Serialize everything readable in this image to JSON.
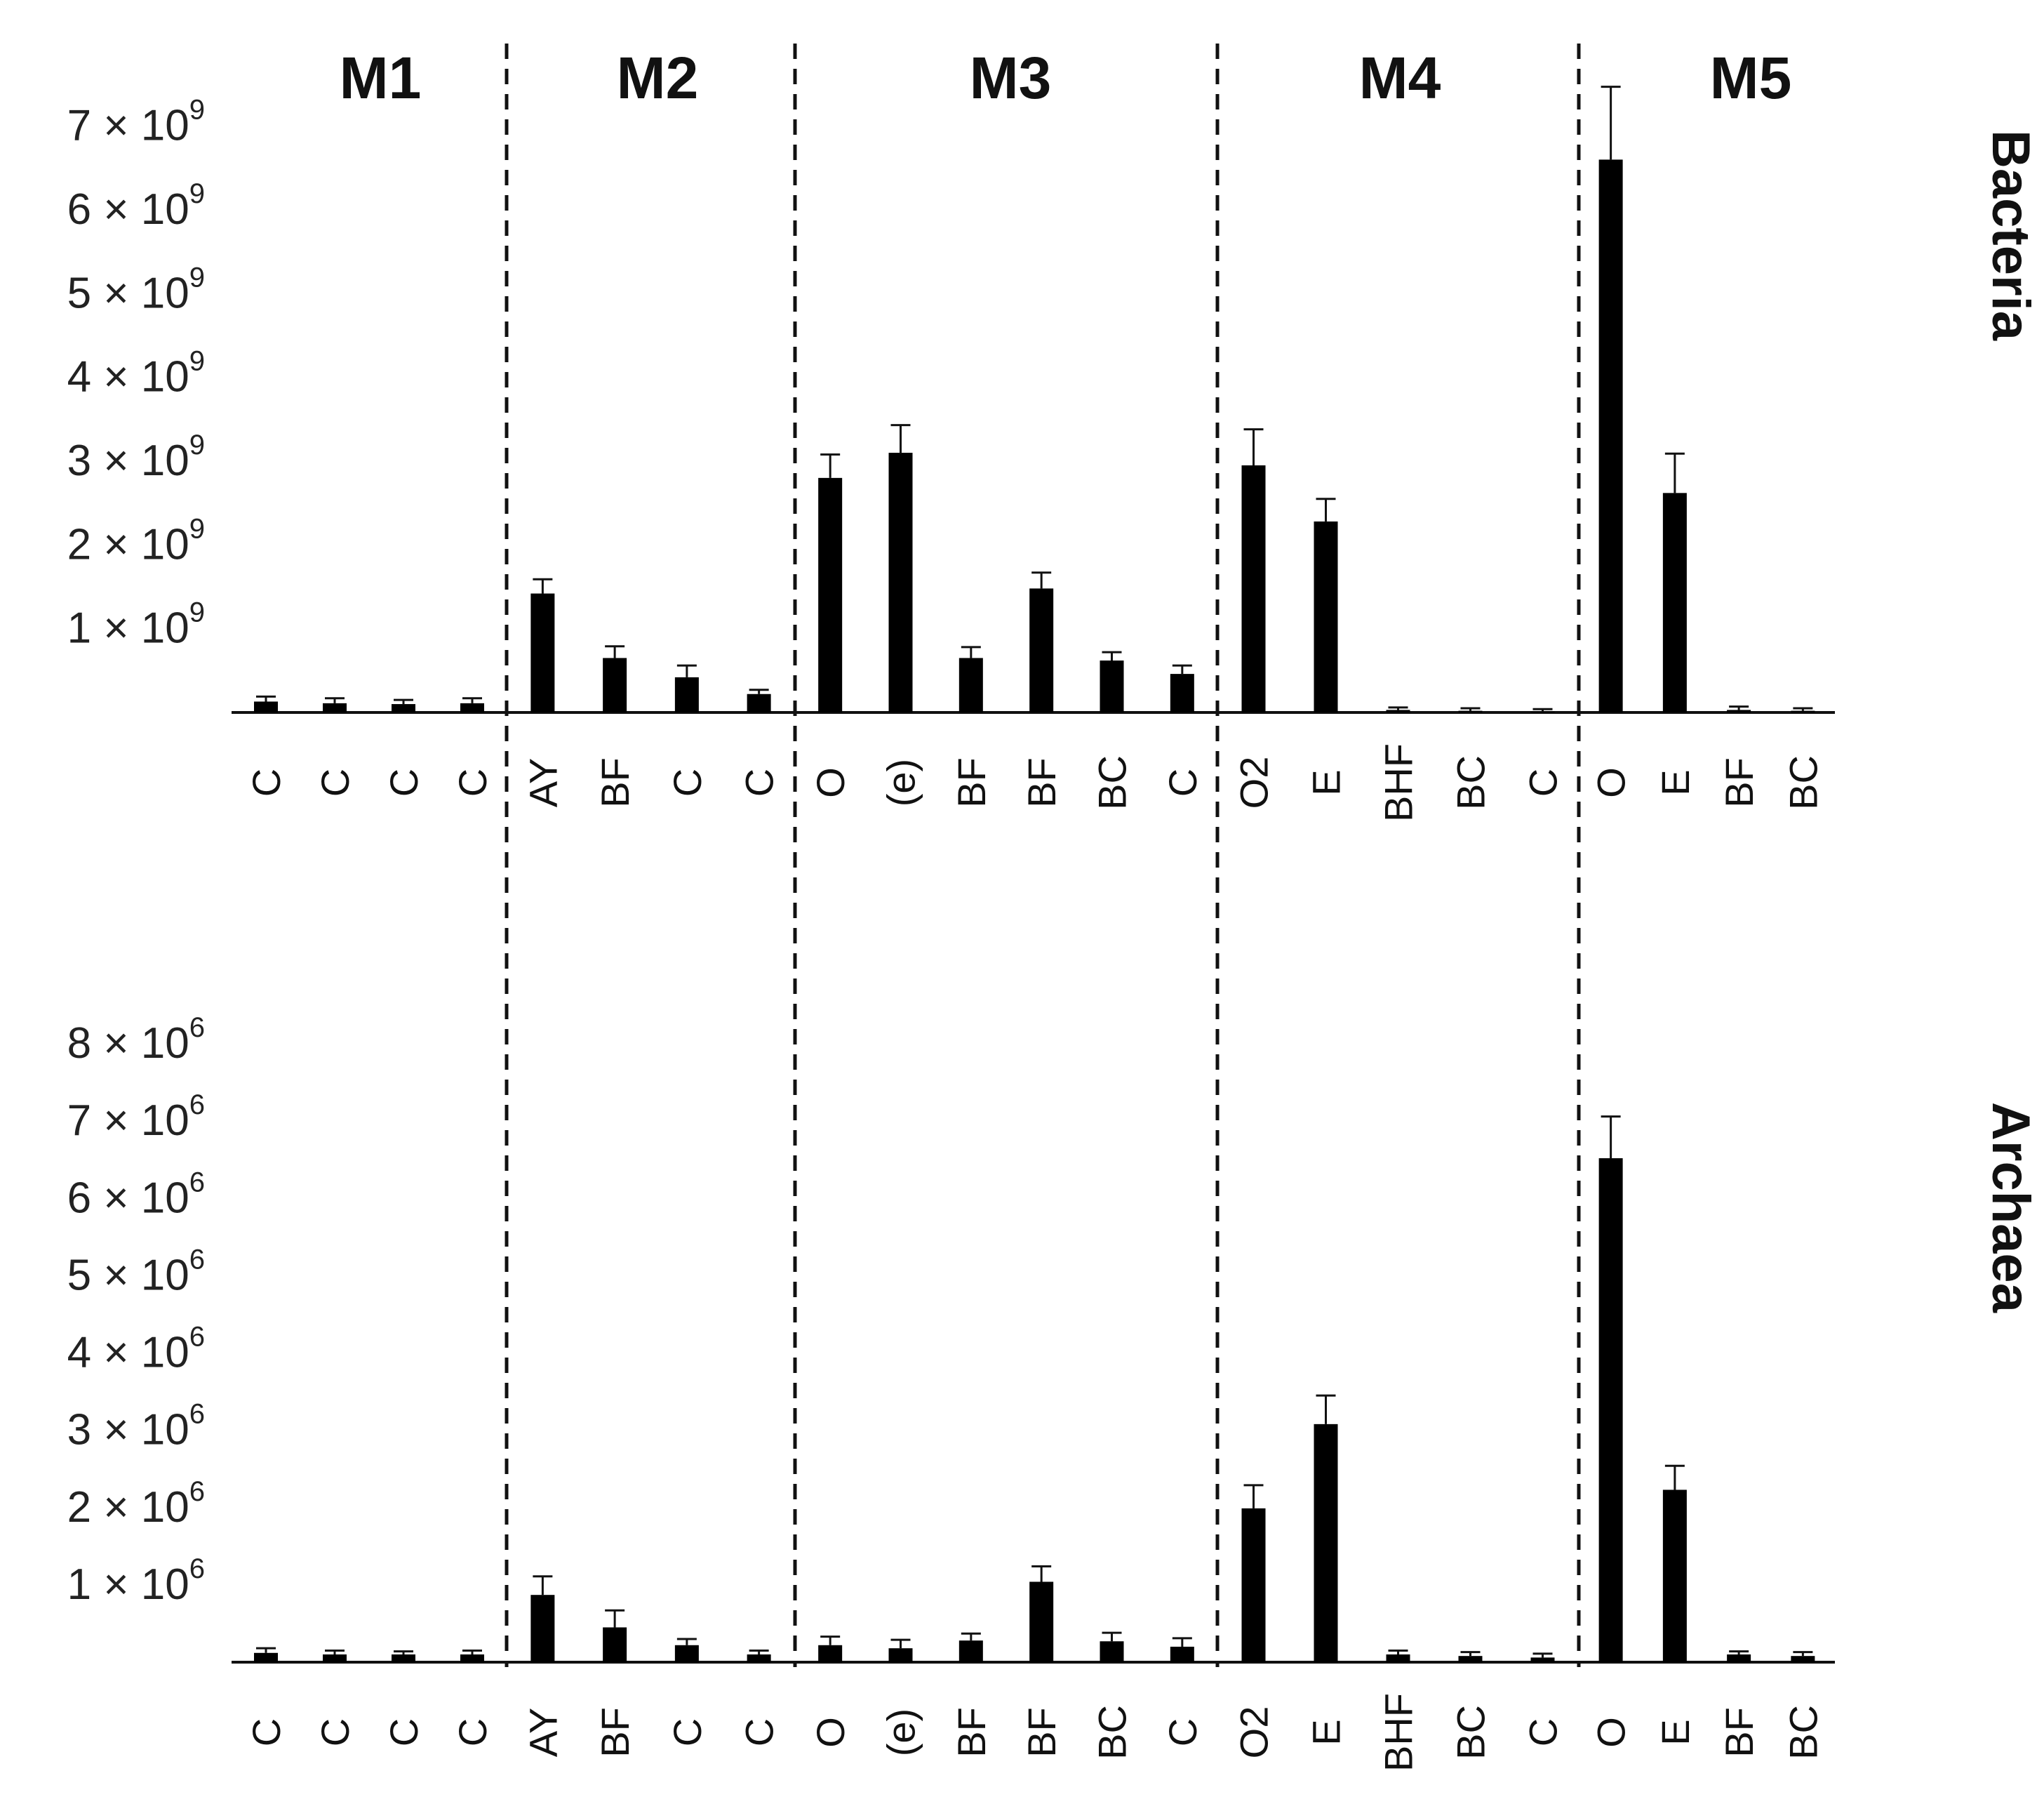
{
  "chart_data": {
    "type": "bar",
    "groups": [
      {
        "label": "M1",
        "count": 4
      },
      {
        "label": "M2",
        "count": 4
      },
      {
        "label": "M3",
        "count": 6
      },
      {
        "label": "M4",
        "count": 5
      },
      {
        "label": "M5",
        "count": 4
      }
    ],
    "categories": [
      "C",
      "C",
      "C",
      "C",
      "AY",
      "BF",
      "C",
      "C",
      "O",
      "(e)",
      "BF",
      "BF",
      "BC",
      "C",
      "O2",
      "E",
      "BHF",
      "BC",
      "C",
      "O",
      "E",
      "BF",
      "BC"
    ],
    "panels": [
      {
        "name": "Bacteria",
        "ylim": [
          0,
          7500000000.0
        ],
        "yticks": [
          {
            "value": 1000000000.0,
            "mantissa": "1",
            "exponent": "9"
          },
          {
            "value": 2000000000.0,
            "mantissa": "2",
            "exponent": "9"
          },
          {
            "value": 3000000000.0,
            "mantissa": "3",
            "exponent": "9"
          },
          {
            "value": 4000000000.0,
            "mantissa": "4",
            "exponent": "9"
          },
          {
            "value": 5000000000.0,
            "mantissa": "5",
            "exponent": "9"
          },
          {
            "value": 6000000000.0,
            "mantissa": "6",
            "exponent": "9"
          },
          {
            "value": 7000000000.0,
            "mantissa": "7",
            "exponent": "9"
          }
        ],
        "values": [
          130000000.0,
          110000000.0,
          100000000.0,
          110000000.0,
          1420000000.0,
          650000000.0,
          420000000.0,
          220000000.0,
          2800000000.0,
          3100000000.0,
          650000000.0,
          1480000000.0,
          620000000.0,
          460000000.0,
          2950000000.0,
          2280000000.0,
          30000000.0,
          20000000.0,
          10000000.0,
          6600000000.0,
          2620000000.0,
          30000000.0,
          20000000.0
        ],
        "errors": [
          60000000.0,
          60000000.0,
          50000000.0,
          60000000.0,
          170000000.0,
          140000000.0,
          140000000.0,
          50000000.0,
          280000000.0,
          330000000.0,
          130000000.0,
          190000000.0,
          100000000.0,
          100000000.0,
          430000000.0,
          270000000.0,
          30000000.0,
          30000000.0,
          30000000.0,
          870000000.0,
          470000000.0,
          40000000.0,
          30000000.0
        ]
      },
      {
        "name": "Archaea",
        "ylim": [
          0,
          8700000.0
        ],
        "yticks": [
          {
            "value": 1000000.0,
            "mantissa": "1",
            "exponent": "6"
          },
          {
            "value": 2000000.0,
            "mantissa": "2",
            "exponent": "6"
          },
          {
            "value": 3000000.0,
            "mantissa": "3",
            "exponent": "6"
          },
          {
            "value": 4000000.0,
            "mantissa": "4",
            "exponent": "6"
          },
          {
            "value": 5000000.0,
            "mantissa": "5",
            "exponent": "6"
          },
          {
            "value": 6000000.0,
            "mantissa": "6",
            "exponent": "6"
          },
          {
            "value": 7000000.0,
            "mantissa": "7",
            "exponent": "6"
          },
          {
            "value": 8000000.0,
            "mantissa": "8",
            "exponent": "6"
          }
        ],
        "values": [
          120000.0,
          100000.0,
          100000.0,
          100000.0,
          870000.0,
          450000.0,
          220000.0,
          100000.0,
          220000.0,
          180000.0,
          280000.0,
          1040000.0,
          270000.0,
          200000.0,
          1990000.0,
          3080000.0,
          100000.0,
          80000.0,
          60000.0,
          6520000.0,
          2230000.0,
          100000.0,
          80000.0
        ],
        "errors": [
          60000.0,
          50000.0,
          40000.0,
          50000.0,
          240000.0,
          220000.0,
          80000.0,
          50000.0,
          110000.0,
          110000.0,
          90000.0,
          200000.0,
          110000.0,
          110000.0,
          300000.0,
          370000.0,
          50000.0,
          50000.0,
          50000.0,
          540000.0,
          310000.0,
          40000.0,
          50000.0
        ]
      }
    ],
    "bar_color": "#000000",
    "divider_style": "dashed",
    "grid": false,
    "legend": "none"
  }
}
